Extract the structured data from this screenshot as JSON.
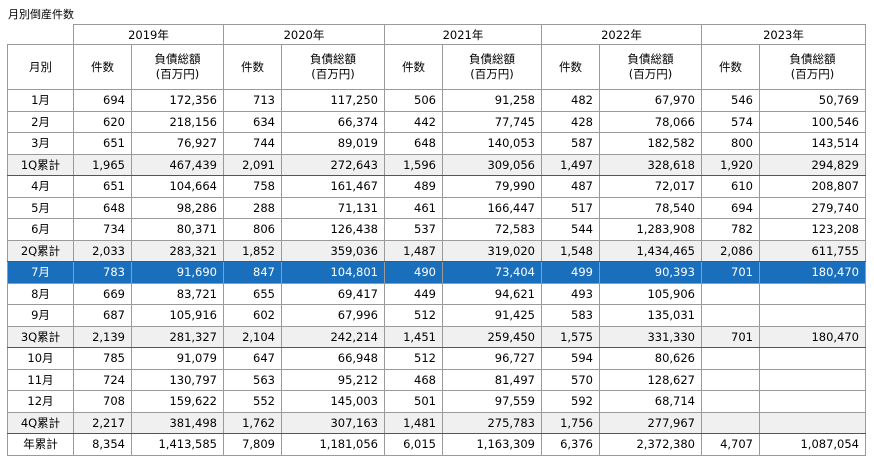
{
  "caption": "月別倒産件数",
  "years": [
    "2019年",
    "2020年",
    "2021年",
    "2022年",
    "2023年"
  ],
  "header": {
    "month_label": "月別",
    "count_label": "件数",
    "amount_label_line1": "負債総額",
    "amount_label_line2": "(百万円)"
  },
  "rows": [
    {
      "label": "1月",
      "type": "normal",
      "cells": [
        [
          "694",
          "172,356"
        ],
        [
          "713",
          "117,250"
        ],
        [
          "506",
          "91,258"
        ],
        [
          "482",
          "67,970"
        ],
        [
          "546",
          "50,769"
        ]
      ]
    },
    {
      "label": "2月",
      "type": "normal",
      "cells": [
        [
          "620",
          "218,156"
        ],
        [
          "634",
          "66,374"
        ],
        [
          "442",
          "77,745"
        ],
        [
          "428",
          "78,066"
        ],
        [
          "574",
          "100,546"
        ]
      ]
    },
    {
      "label": "3月",
      "type": "normal",
      "cells": [
        [
          "651",
          "76,927"
        ],
        [
          "744",
          "89,019"
        ],
        [
          "648",
          "140,053"
        ],
        [
          "587",
          "182,582"
        ],
        [
          "800",
          "143,514"
        ]
      ]
    },
    {
      "label": "1Q累計",
      "type": "sum",
      "cells": [
        [
          "1,965",
          "467,439"
        ],
        [
          "2,091",
          "272,643"
        ],
        [
          "1,596",
          "309,056"
        ],
        [
          "1,497",
          "328,618"
        ],
        [
          "1,920",
          "294,829"
        ]
      ]
    },
    {
      "label": "4月",
      "type": "normal",
      "cells": [
        [
          "651",
          "104,664"
        ],
        [
          "758",
          "161,467"
        ],
        [
          "489",
          "79,990"
        ],
        [
          "487",
          "72,017"
        ],
        [
          "610",
          "208,807"
        ]
      ]
    },
    {
      "label": "5月",
      "type": "normal",
      "cells": [
        [
          "648",
          "98,286"
        ],
        [
          "288",
          "71,131"
        ],
        [
          "461",
          "166,447"
        ],
        [
          "517",
          "78,540"
        ],
        [
          "694",
          "279,740"
        ]
      ]
    },
    {
      "label": "6月",
      "type": "normal",
      "cells": [
        [
          "734",
          "80,371"
        ],
        [
          "806",
          "126,438"
        ],
        [
          "537",
          "72,583"
        ],
        [
          "544",
          "1,283,908"
        ],
        [
          "782",
          "123,208"
        ]
      ]
    },
    {
      "label": "2Q累計",
      "type": "sum",
      "cells": [
        [
          "2,033",
          "283,321"
        ],
        [
          "1,852",
          "359,036"
        ],
        [
          "1,487",
          "319,020"
        ],
        [
          "1,548",
          "1,434,465"
        ],
        [
          "2,086",
          "611,755"
        ]
      ]
    },
    {
      "label": "7月",
      "type": "hl",
      "cells": [
        [
          "783",
          "91,690"
        ],
        [
          "847",
          "104,801"
        ],
        [
          "490",
          "73,404"
        ],
        [
          "499",
          "90,393"
        ],
        [
          "701",
          "180,470"
        ]
      ]
    },
    {
      "label": "8月",
      "type": "normal",
      "cells": [
        [
          "669",
          "83,721"
        ],
        [
          "655",
          "69,417"
        ],
        [
          "449",
          "94,621"
        ],
        [
          "493",
          "105,906"
        ],
        [
          "",
          ""
        ]
      ]
    },
    {
      "label": "9月",
      "type": "normal",
      "cells": [
        [
          "687",
          "105,916"
        ],
        [
          "602",
          "67,996"
        ],
        [
          "512",
          "91,425"
        ],
        [
          "583",
          "135,031"
        ],
        [
          "",
          ""
        ]
      ]
    },
    {
      "label": "3Q累計",
      "type": "sum",
      "cells": [
        [
          "2,139",
          "281,327"
        ],
        [
          "2,104",
          "242,214"
        ],
        [
          "1,451",
          "259,450"
        ],
        [
          "1,575",
          "331,330"
        ],
        [
          "701",
          "180,470"
        ]
      ]
    },
    {
      "label": "10月",
      "type": "normal",
      "cells": [
        [
          "785",
          "91,079"
        ],
        [
          "647",
          "66,948"
        ],
        [
          "512",
          "96,727"
        ],
        [
          "594",
          "80,626"
        ],
        [
          "",
          ""
        ]
      ]
    },
    {
      "label": "11月",
      "type": "normal",
      "cells": [
        [
          "724",
          "130,797"
        ],
        [
          "563",
          "95,212"
        ],
        [
          "468",
          "81,497"
        ],
        [
          "570",
          "128,627"
        ],
        [
          "",
          ""
        ]
      ]
    },
    {
      "label": "12月",
      "type": "normal",
      "cells": [
        [
          "708",
          "159,622"
        ],
        [
          "552",
          "145,003"
        ],
        [
          "501",
          "97,559"
        ],
        [
          "592",
          "68,714"
        ],
        [
          "",
          ""
        ]
      ]
    },
    {
      "label": "4Q累計",
      "type": "sum",
      "cells": [
        [
          "2,217",
          "381,498"
        ],
        [
          "1,762",
          "307,163"
        ],
        [
          "1,481",
          "275,783"
        ],
        [
          "1,756",
          "277,967"
        ],
        [
          "",
          ""
        ]
      ]
    },
    {
      "label": "年累計",
      "type": "normal",
      "cells": [
        [
          "8,354",
          "1,413,585"
        ],
        [
          "7,809",
          "1,181,056"
        ],
        [
          "6,015",
          "1,163,309"
        ],
        [
          "6,376",
          "2,372,380"
        ],
        [
          "4,707",
          "1,087,054"
        ]
      ]
    }
  ]
}
